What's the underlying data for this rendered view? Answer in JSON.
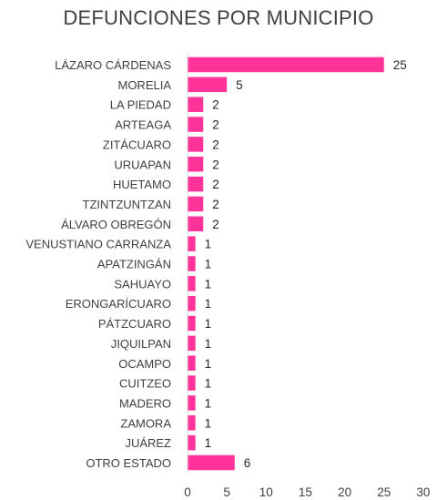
{
  "chart_data": {
    "type": "bar",
    "orientation": "horizontal",
    "title": "DEFUNCIONES POR MUNICIPIO",
    "xlabel": "",
    "ylabel": "",
    "categories": [
      "LÁZARO CÁRDENAS",
      "MORELIA",
      "LA PIEDAD",
      "ARTEAGA",
      "ZITÁCUARO",
      "URUAPAN",
      "HUETAMO",
      "TZINTZUNTZAN",
      "ÁLVARO OBREGÓN",
      "VENUSTIANO CARRANZA",
      "APATZINGÁN",
      "SAHUAYO",
      "ERONGARÍCUARO",
      "PÁTZCUARO",
      "JIQUILPAN",
      "OCAMPO",
      "CUITZEO",
      "MADERO",
      "ZAMORA",
      "JUÁREZ",
      "OTRO ESTADO"
    ],
    "values": [
      25,
      5,
      2,
      2,
      2,
      2,
      2,
      2,
      2,
      1,
      1,
      1,
      1,
      1,
      1,
      1,
      1,
      1,
      1,
      1,
      6
    ],
    "xlim": [
      0,
      30
    ],
    "xticks": [
      0,
      5,
      10,
      15,
      20,
      25,
      30
    ],
    "grid": false,
    "legend": "none",
    "bar_color": "#FF3399",
    "data_labels": true
  }
}
